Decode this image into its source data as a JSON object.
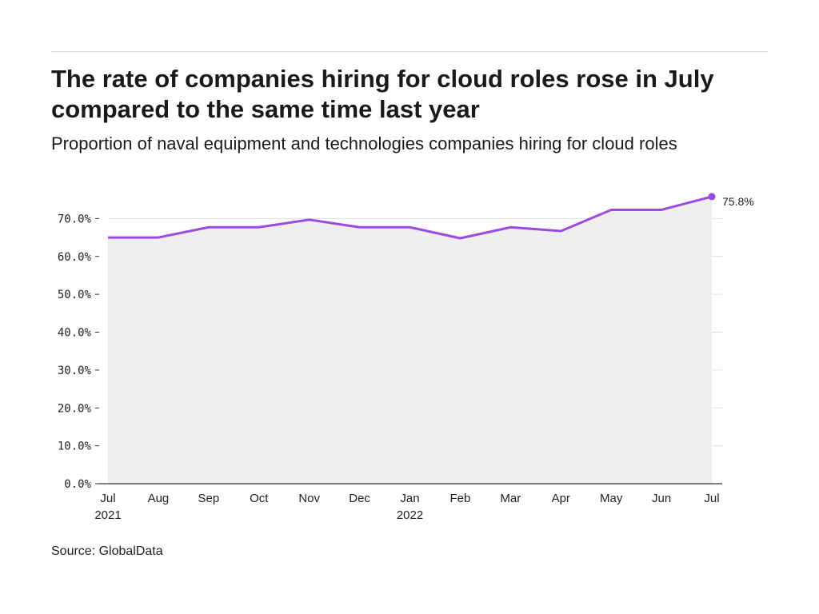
{
  "title": "The rate of companies hiring for cloud roles rose in July compared to the same time last year",
  "subtitle": "Proportion of naval equipment and technologies companies hiring for cloud roles",
  "source": "Source: GlobalData",
  "colors": {
    "line": "#9b4be0",
    "area": "#efefef",
    "grid": "#dddddd",
    "axis": "#333333"
  },
  "chart_data": {
    "type": "line",
    "title": "The rate of companies hiring for cloud roles rose in July compared to the same time last year",
    "subtitle": "Proportion of naval equipment and technologies companies hiring for cloud roles",
    "xlabel": "",
    "ylabel": "",
    "x": [
      "Jul 2021",
      "Aug 2021",
      "Sep 2021",
      "Oct 2021",
      "Nov 2021",
      "Dec 2021",
      "Jan 2022",
      "Feb 2022",
      "Mar 2022",
      "Apr 2022",
      "May 2022",
      "Jun 2022",
      "Jul 2022"
    ],
    "x_tick_labels": [
      [
        "Jul",
        "2021"
      ],
      [
        "Aug"
      ],
      [
        "Sep"
      ],
      [
        "Oct"
      ],
      [
        "Nov"
      ],
      [
        "Dec"
      ],
      [
        "Jan",
        "2022"
      ],
      [
        "Feb"
      ],
      [
        "Mar"
      ],
      [
        "Apr"
      ],
      [
        "May"
      ],
      [
        "Jun"
      ],
      [
        "Jul"
      ]
    ],
    "values": [
      65.0,
      65.0,
      67.7,
      67.7,
      69.7,
      67.7,
      67.7,
      64.8,
      67.7,
      66.7,
      72.3,
      72.3,
      75.8
    ],
    "ylim": [
      0,
      80
    ],
    "y_ticks": [
      0,
      10,
      20,
      30,
      40,
      50,
      60,
      70
    ],
    "y_tick_labels": [
      "0.0%",
      "10.0%",
      "20.0%",
      "30.0%",
      "40.0%",
      "50.0%",
      "60.0%",
      "70.0%"
    ],
    "end_label": "75.8%",
    "grid": true,
    "area_fill": true
  }
}
